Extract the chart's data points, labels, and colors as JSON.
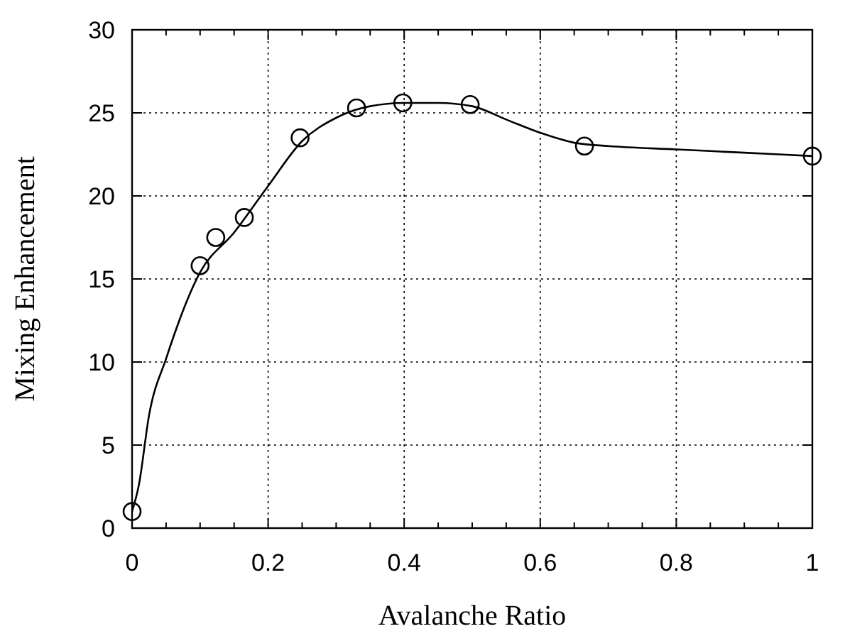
{
  "chart_data": {
    "type": "scatter",
    "xlabel": "Avalanche Ratio",
    "ylabel": "Mixing Enhancement",
    "xlim": [
      0,
      1
    ],
    "ylim": [
      0,
      30
    ],
    "xticks": [
      0,
      {
        "value": 0.05,
        "label": null
      },
      {
        "value": 0.1,
        "label": null
      },
      {
        "value": 0.15,
        "label": null
      },
      0.2,
      {
        "value": 0.25,
        "label": null
      },
      {
        "value": 0.3,
        "label": null
      },
      {
        "value": 0.35,
        "label": null
      },
      0.4,
      {
        "value": 0.45,
        "label": null
      },
      {
        "value": 0.5,
        "label": null
      },
      {
        "value": 0.55,
        "label": null
      },
      0.6,
      {
        "value": 0.65,
        "label": null
      },
      {
        "value": 0.7,
        "label": null
      },
      {
        "value": 0.75,
        "label": null
      },
      0.8,
      {
        "value": 0.85,
        "label": null
      },
      {
        "value": 0.9,
        "label": null
      },
      {
        "value": 0.95,
        "label": null
      },
      1
    ],
    "yticks": [
      0,
      5,
      10,
      15,
      20,
      25,
      30
    ],
    "grid": true,
    "series": [
      {
        "color": "#000000",
        "marker": "circle",
        "x": [
          0,
          0.1,
          0.123,
          0.165,
          0.247,
          0.33,
          0.398,
          0.497,
          0.665,
          1
        ],
        "values": [
          1.0,
          15.8,
          17.5,
          18.7,
          23.5,
          25.3,
          25.6,
          25.5,
          23.0,
          22.4
        ]
      },
      {
        "type": "line",
        "color": "#000000",
        "line_style": "solid",
        "x": [
          0,
          0.01,
          0.025,
          0.05,
          0.1,
          0.15,
          0.2,
          0.25,
          0.3,
          0.35,
          0.4,
          0.45,
          0.5,
          0.55,
          0.6,
          0.65,
          0.7,
          0.8,
          0.9,
          1
        ],
        "values": [
          1.0,
          2.6,
          6.8,
          10.2,
          15.4,
          17.8,
          20.6,
          23.3,
          24.7,
          25.4,
          25.6,
          25.6,
          25.4,
          24.6,
          23.8,
          23.2,
          23.0,
          22.8,
          22.6,
          22.4
        ]
      }
    ]
  }
}
